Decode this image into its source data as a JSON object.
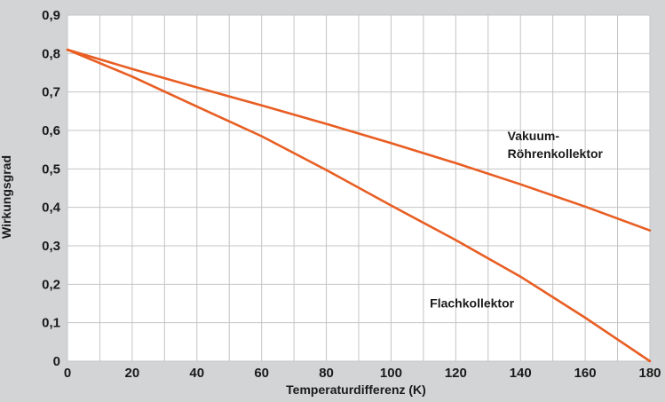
{
  "chart_data": {
    "type": "line",
    "title": "",
    "xlabel": "Temperaturdifferenz (K)",
    "ylabel": "Wirkungsgrad",
    "xlim": [
      0,
      180
    ],
    "ylim": [
      0,
      0.9
    ],
    "x_ticks": [
      "0",
      "20",
      "40",
      "60",
      "80",
      "100",
      "120",
      "140",
      "160",
      "180"
    ],
    "y_ticks": [
      "0",
      "0,1",
      "0,2",
      "0,3",
      "0,4",
      "0,5",
      "0,6",
      "0,7",
      "0,8",
      "0,9"
    ],
    "grid": true,
    "legend": "none",
    "colors": {
      "background": "#d3d4d6",
      "plot_area": "#ffffff",
      "grid": "#c4c4c4",
      "series": "#e85e23"
    },
    "series": [
      {
        "name": "Vakuum-Röhrenkollektor",
        "label_lines": [
          "Vakuum-",
          "Röhrenkollektor"
        ],
        "x": [
          0,
          20,
          40,
          60,
          80,
          100,
          120,
          140,
          160,
          180
        ],
        "y": [
          0.81,
          0.76,
          0.712,
          0.665,
          0.617,
          0.567,
          0.515,
          0.46,
          0.402,
          0.34
        ]
      },
      {
        "name": "Flachkollektor",
        "label_lines": [
          "Flachkollektor"
        ],
        "x": [
          0,
          20,
          40,
          60,
          80,
          100,
          120,
          140,
          160,
          180
        ],
        "y": [
          0.81,
          0.74,
          0.662,
          0.585,
          0.497,
          0.405,
          0.315,
          0.22,
          0.113,
          0
        ]
      }
    ]
  }
}
